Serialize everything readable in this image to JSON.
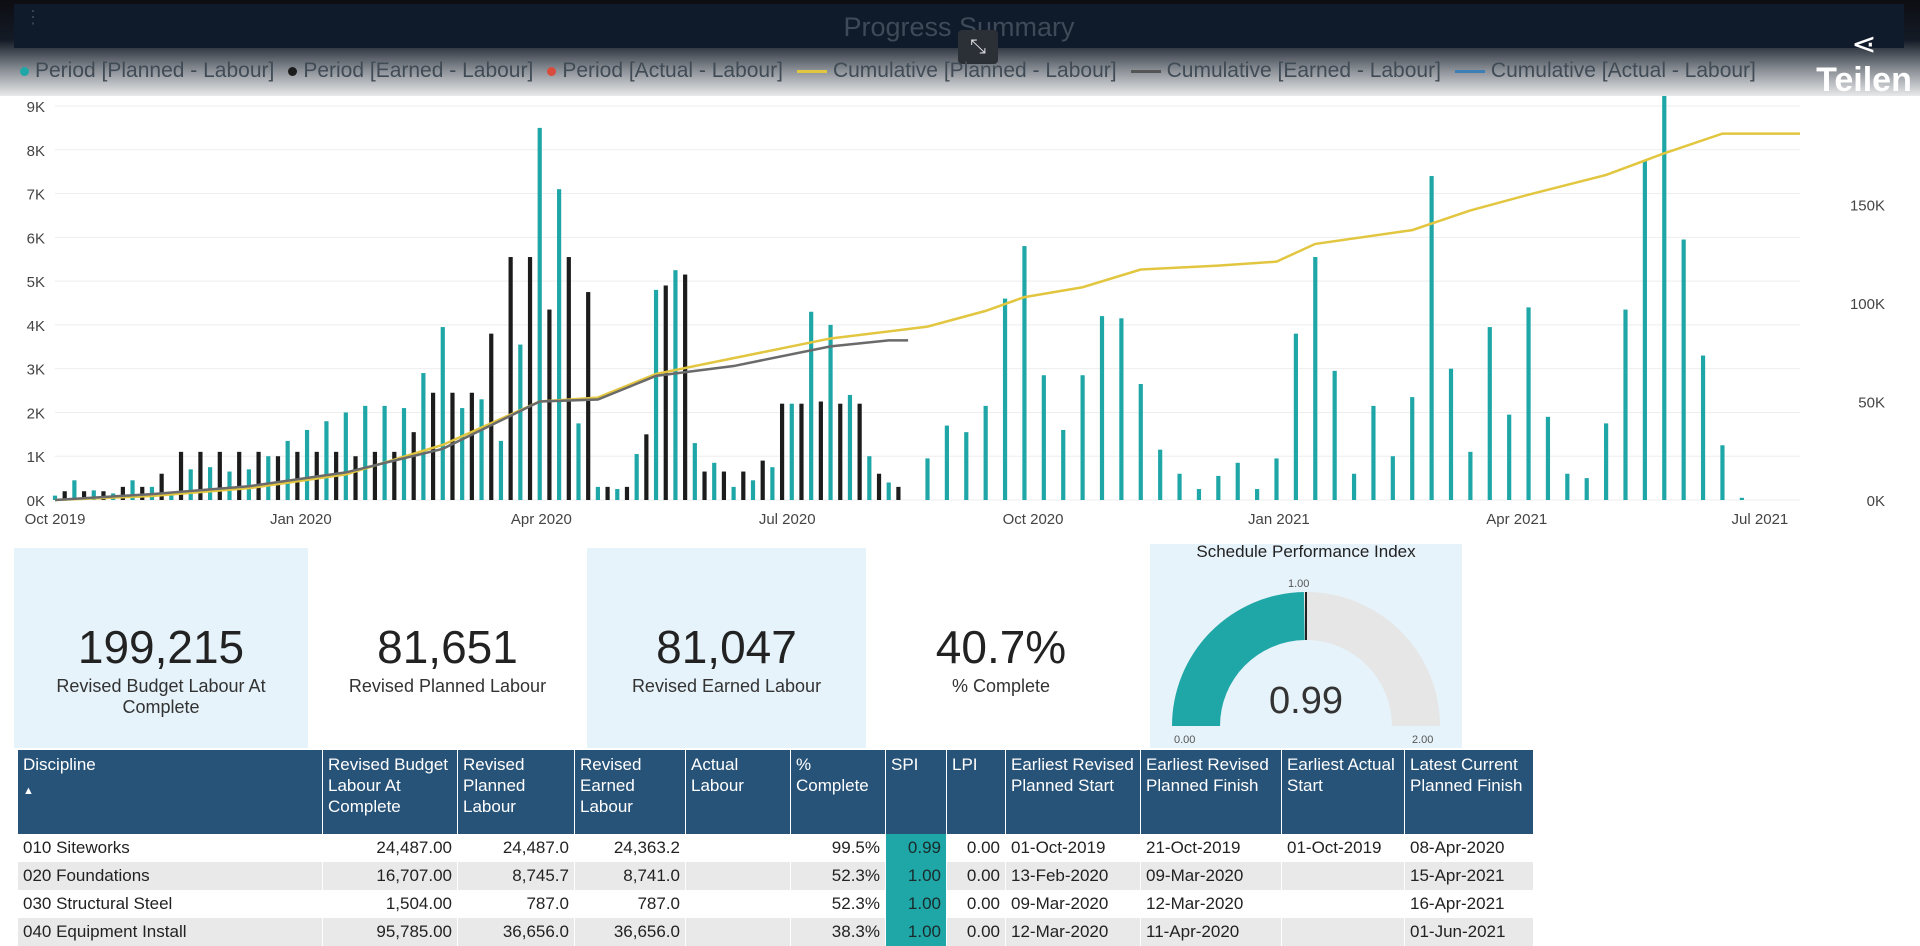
{
  "header": {
    "title": "Progress Summary",
    "share_label": "Teilen",
    "icons": [
      "more-vert-icon",
      "exit-fullscreen-icon",
      "share-icon"
    ]
  },
  "legend": [
    {
      "label": "Period [Planned - Labour]",
      "color": "#1fa7a8",
      "kind": "dot"
    },
    {
      "label": "Period [Earned - Labour]",
      "color": "#1c1c1c",
      "kind": "dot"
    },
    {
      "label": "Period [Actual - Labour]",
      "color": "#d94b3d",
      "kind": "dot"
    },
    {
      "label": "Cumulative [Planned - Labour]",
      "color": "#e2c640",
      "kind": "line"
    },
    {
      "label": "Cumulative [Earned - Labour]",
      "color": "#555555",
      "kind": "line"
    },
    {
      "label": "Cumulative [Actual - Labour]",
      "color": "#3d7fb5",
      "kind": "line"
    }
  ],
  "chart_data": {
    "type": "bar",
    "title": "Progress Summary",
    "left_axis": {
      "ticks": [
        "0K",
        "1K",
        "2K",
        "3K",
        "4K",
        "5K",
        "6K",
        "7K",
        "8K",
        "9K"
      ],
      "range": [
        0,
        9000
      ]
    },
    "right_axis": {
      "ticks": [
        "0K",
        "50K",
        "100K",
        "150K"
      ],
      "range": [
        0,
        200000
      ]
    },
    "x_axis": {
      "ticks": [
        "Oct 2019",
        "Jan 2020",
        "Apr 2020",
        "Jul 2020",
        "Oct 2020",
        "Jan 2021",
        "Apr 2021",
        "Jul 2021"
      ],
      "range": [
        "2019-10-01",
        "2021-07-15"
      ]
    },
    "grid": true,
    "legend_position": "top",
    "series": [
      {
        "name": "Period [Planned - Labour]",
        "type": "bar",
        "values": [
          [
            0,
            100
          ],
          [
            2,
            450
          ],
          [
            4,
            220
          ],
          [
            6,
            150
          ],
          [
            8,
            450
          ],
          [
            10,
            300
          ],
          [
            12,
            150
          ],
          [
            14,
            700
          ],
          [
            16,
            750
          ],
          [
            18,
            650
          ],
          [
            20,
            700
          ],
          [
            22,
            1000
          ],
          [
            24,
            1350
          ],
          [
            26,
            1600
          ],
          [
            28,
            1800
          ],
          [
            30,
            2000
          ],
          [
            32,
            2150
          ],
          [
            34,
            2150
          ],
          [
            36,
            2100
          ],
          [
            38,
            2900
          ],
          [
            40,
            3950
          ],
          [
            42,
            2100
          ],
          [
            44,
            2300
          ],
          [
            46,
            1350
          ],
          [
            48,
            3550
          ],
          [
            50,
            8500
          ],
          [
            52,
            7100
          ],
          [
            54,
            1750
          ],
          [
            56,
            300
          ],
          [
            58,
            250
          ],
          [
            60,
            1050
          ],
          [
            62,
            4800
          ],
          [
            64,
            5250
          ],
          [
            66,
            1300
          ],
          [
            68,
            850
          ],
          [
            70,
            300
          ],
          [
            72,
            450
          ],
          [
            74,
            750
          ],
          [
            76,
            2200
          ],
          [
            78,
            4300
          ],
          [
            80,
            4000
          ],
          [
            82,
            2400
          ],
          [
            84,
            1000
          ],
          [
            86,
            400
          ],
          [
            88,
            0
          ],
          [
            90,
            950
          ],
          [
            92,
            1700
          ],
          [
            94,
            1550
          ],
          [
            96,
            2150
          ],
          [
            98,
            4600
          ],
          [
            100,
            5800
          ],
          [
            102,
            2850
          ],
          [
            104,
            1600
          ],
          [
            106,
            2850
          ],
          [
            108,
            4200
          ],
          [
            110,
            4150
          ],
          [
            112,
            2650
          ],
          [
            114,
            1150
          ],
          [
            116,
            600
          ],
          [
            118,
            250
          ],
          [
            120,
            550
          ],
          [
            122,
            850
          ],
          [
            124,
            250
          ],
          [
            126,
            950
          ],
          [
            128,
            3800
          ],
          [
            130,
            5550
          ],
          [
            132,
            2950
          ],
          [
            134,
            600
          ],
          [
            136,
            2150
          ],
          [
            138,
            1000
          ],
          [
            140,
            2350
          ],
          [
            142,
            7400
          ],
          [
            144,
            3000
          ],
          [
            146,
            1100
          ],
          [
            148,
            3950
          ],
          [
            150,
            1950
          ],
          [
            152,
            4400
          ],
          [
            154,
            1900
          ],
          [
            156,
            600
          ],
          [
            158,
            500
          ],
          [
            160,
            1750
          ],
          [
            162,
            4350
          ],
          [
            164,
            7750
          ],
          [
            166,
            9300
          ],
          [
            168,
            5950
          ],
          [
            170,
            3300
          ],
          [
            172,
            1250
          ],
          [
            174,
            50
          ]
        ]
      },
      {
        "name": "Period [Earned - Labour]",
        "type": "bar",
        "values": [
          [
            1,
            200
          ],
          [
            3,
            200
          ],
          [
            5,
            200
          ],
          [
            7,
            300
          ],
          [
            9,
            300
          ],
          [
            11,
            600
          ],
          [
            13,
            1100
          ],
          [
            15,
            1100
          ],
          [
            17,
            1100
          ],
          [
            19,
            1100
          ],
          [
            21,
            1100
          ],
          [
            23,
            1000
          ],
          [
            25,
            1100
          ],
          [
            27,
            1100
          ],
          [
            29,
            1100
          ],
          [
            31,
            1000
          ],
          [
            33,
            1100
          ],
          [
            35,
            1100
          ],
          [
            37,
            1550
          ],
          [
            39,
            2450
          ],
          [
            41,
            2450
          ],
          [
            43,
            2450
          ],
          [
            45,
            3800
          ],
          [
            47,
            5550
          ],
          [
            49,
            5550
          ],
          [
            51,
            4350
          ],
          [
            53,
            5550
          ],
          [
            55,
            4750
          ],
          [
            57,
            300
          ],
          [
            59,
            300
          ],
          [
            61,
            1500
          ],
          [
            63,
            4900
          ],
          [
            65,
            5150
          ],
          [
            67,
            650
          ],
          [
            69,
            650
          ],
          [
            71,
            650
          ],
          [
            73,
            900
          ],
          [
            75,
            2200
          ],
          [
            77,
            2200
          ],
          [
            79,
            2250
          ],
          [
            81,
            2200
          ],
          [
            83,
            2200
          ],
          [
            85,
            600
          ],
          [
            87,
            300
          ]
        ]
      },
      {
        "name": "Cumulative [Planned - Labour]",
        "type": "line",
        "axis": "right",
        "values": [
          [
            0,
            0
          ],
          [
            10,
            2000
          ],
          [
            20,
            6000
          ],
          [
            30,
            13000
          ],
          [
            40,
            28000
          ],
          [
            50,
            50000
          ],
          [
            56,
            52000
          ],
          [
            62,
            64000
          ],
          [
            70,
            72000
          ],
          [
            80,
            82000
          ],
          [
            90,
            88000
          ],
          [
            96,
            96000
          ],
          [
            100,
            103000
          ],
          [
            106,
            108000
          ],
          [
            112,
            117000
          ],
          [
            120,
            119000
          ],
          [
            126,
            121000
          ],
          [
            130,
            130000
          ],
          [
            140,
            137000
          ],
          [
            146,
            147000
          ],
          [
            152,
            155000
          ],
          [
            160,
            165000
          ],
          [
            166,
            176000
          ],
          [
            172,
            186000
          ],
          [
            180,
            186000
          ]
        ]
      },
      {
        "name": "Cumulative [Earned - Labour]",
        "type": "line",
        "axis": "right",
        "values": [
          [
            0,
            0
          ],
          [
            10,
            3000
          ],
          [
            20,
            7000
          ],
          [
            30,
            14000
          ],
          [
            40,
            26000
          ],
          [
            50,
            50000
          ],
          [
            56,
            51000
          ],
          [
            62,
            63000
          ],
          [
            70,
            68000
          ],
          [
            80,
            78000
          ],
          [
            86,
            81000
          ],
          [
            88,
            81000
          ]
        ]
      }
    ]
  },
  "kpis": [
    {
      "value": "199,215",
      "label": "Revised Budget Labour At Complete",
      "bg": "#e6f3fa"
    },
    {
      "value": "81,651",
      "label": "Revised Planned Labour",
      "bg": "#ffffff"
    },
    {
      "value": "81,047",
      "label": "Revised Earned Labour",
      "bg": "#e6f3fa"
    },
    {
      "value": "40.7%",
      "label": "% Complete",
      "bg": "#ffffff"
    }
  ],
  "gauge": {
    "title": "Schedule Performance Index",
    "value": "0.99",
    "fraction": 0.495,
    "min_label": "0.00",
    "max_label": "2.00",
    "target_label": "1.00",
    "fill_color": "#1fa7a8",
    "track_color": "#e6e6e6"
  },
  "table": {
    "columns": [
      "Discipline",
      "Revised Budget Labour At Complete",
      "Revised Planned Labour",
      "Revised Earned Labour",
      "Actual Labour",
      "% Complete",
      "SPI",
      "LPI",
      "Earliest Revised Planned Start",
      "Earliest Revised Planned Finish",
      "Earliest Actual Start",
      "Latest Current Planned Finish"
    ],
    "sort_indicator": "▲",
    "rows": [
      [
        "010 Siteworks",
        "24,487.00",
        "24,487.0",
        "24,363.2",
        "",
        "99.5%",
        "0.99",
        "0.00",
        "01-Oct-2019",
        "21-Oct-2019",
        "01-Oct-2019",
        "08-Apr-2020"
      ],
      [
        "020 Foundations",
        "16,707.00",
        "8,745.7",
        "8,741.0",
        "",
        "52.3%",
        "1.00",
        "0.00",
        "13-Feb-2020",
        "09-Mar-2020",
        "",
        "15-Apr-2021"
      ],
      [
        "030 Structural Steel",
        "1,504.00",
        "787.0",
        "787.0",
        "",
        "52.3%",
        "1.00",
        "0.00",
        "09-Mar-2020",
        "12-Mar-2020",
        "",
        "16-Apr-2021"
      ],
      [
        "040 Equipment Install",
        "95,785.00",
        "36,656.0",
        "36,656.0",
        "",
        "38.3%",
        "1.00",
        "0.00",
        "12-Mar-2020",
        "11-Apr-2020",
        "",
        "01-Jun-2021"
      ]
    ]
  }
}
